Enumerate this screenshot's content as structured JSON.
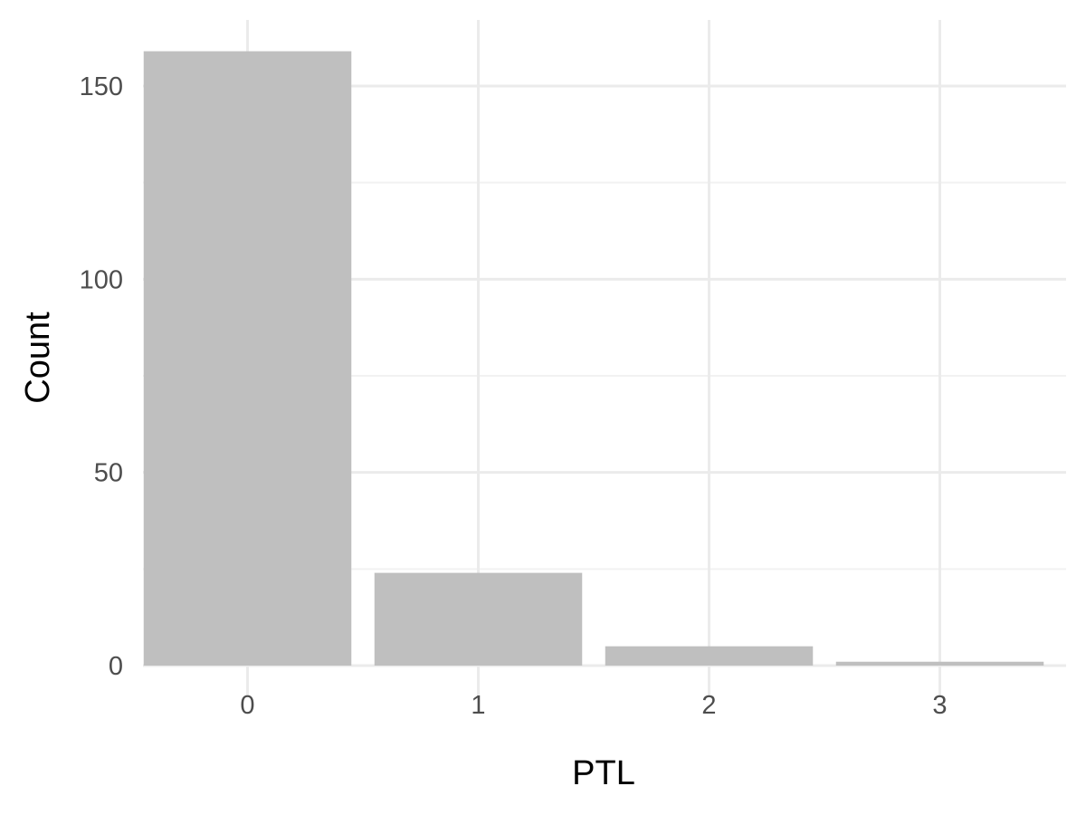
{
  "chart_data": {
    "type": "bar",
    "title": "",
    "xlabel": "PTL",
    "ylabel": "Count",
    "categories": [
      "0",
      "1",
      "2",
      "3"
    ],
    "values": [
      159,
      24,
      5,
      1
    ],
    "ylim": [
      0,
      165
    ],
    "yticks": [
      0,
      50,
      100,
      150
    ],
    "yminor": [
      25,
      75,
      125
    ],
    "grid": true,
    "legend": "none",
    "colors": {
      "bar": "#bfbfbf",
      "grid_major": "#ebebeb",
      "grid_minor": "#f2f2f2",
      "tick_text": "#4d4d4d",
      "title_text": "#000000"
    }
  }
}
